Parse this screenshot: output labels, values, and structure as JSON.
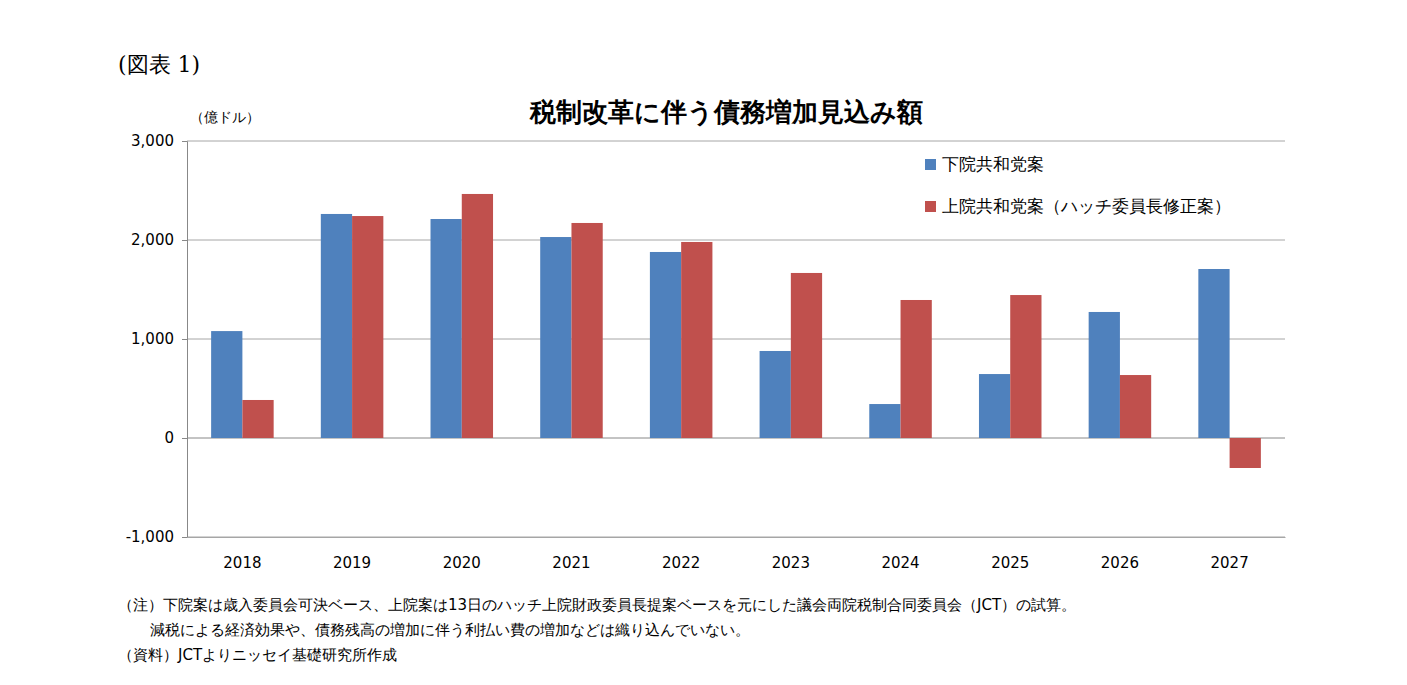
{
  "chart_data": {
    "type": "bar",
    "figure_label": "(図表 1)",
    "title": "税制改革に伴う債務増加見込み額",
    "y_axis_label": "（億ドル）",
    "categories": [
      "2018",
      "2019",
      "2020",
      "2021",
      "2022",
      "2023",
      "2024",
      "2025",
      "2026",
      "2027"
    ],
    "series": [
      {
        "name": "下院共和党案",
        "color": "#4f81bd",
        "values": [
          1080,
          2263,
          2212,
          2030,
          1879,
          879,
          343,
          646,
          1273,
          1707
        ]
      },
      {
        "name": "上院共和党案（ハッチ委員長修正案）",
        "color": "#c0504d",
        "values": [
          384,
          2242,
          2465,
          2172,
          1980,
          1667,
          1394,
          1444,
          636,
          -303
        ]
      }
    ],
    "ylim": [
      -1000,
      3000
    ],
    "yticks": [
      {
        "value": -1000,
        "label": "-1,000"
      },
      0,
      {
        "value": 1000,
        "label": "1,000"
      },
      {
        "value": 2000,
        "label": "2,000"
      },
      {
        "value": 3000,
        "label": "3,000"
      }
    ],
    "grid": true,
    "legend": "upper right",
    "notes": [
      "（注）下院案は歳入委員会可決ベース、上院案は13日のハッチ上院財政委員長提案ベースを元にした議会両院税制合同委員会（JCT）の試算。",
      "減税による経済効果や、債務残高の増加に伴う利払い費の増加などは織り込んでいない。",
      "（資料）JCTよりニッセイ基礎研究所作成"
    ]
  }
}
